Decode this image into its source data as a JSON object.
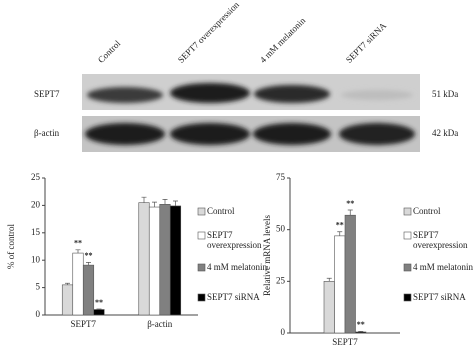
{
  "blot": {
    "columns": [
      "Control",
      "SEPT7 overexpression",
      "4 mM melatonin",
      "SEPT7 siRNA"
    ],
    "rows": [
      {
        "label": "SEPT7",
        "size": "51 kDa"
      },
      {
        "label": "β-actin",
        "size": "42 kDa"
      }
    ]
  },
  "chart_data": [
    {
      "type": "bar",
      "y_label": "% of control",
      "categories": [
        "SEPT7",
        "β-actin"
      ],
      "ylim": [
        0,
        25
      ],
      "yticks": [
        0,
        5,
        10,
        15,
        20,
        25
      ],
      "series": [
        {
          "name": "Control",
          "color": "#d9d9d9",
          "values": [
            5.5,
            20.5
          ],
          "errors": [
            0.3,
            1.0
          ]
        },
        {
          "name": "SEPT7 overexpression",
          "color": "#ffffff",
          "values": [
            11.3,
            19.7
          ],
          "errors": [
            0.6,
            0.9
          ],
          "significance": [
            "**",
            null
          ]
        },
        {
          "name": "4 mM melatonin",
          "color": "#808080",
          "values": [
            9.1,
            20.2
          ],
          "errors": [
            0.5,
            0.9
          ],
          "significance": [
            "**",
            null
          ]
        },
        {
          "name": "SEPT7 siRNA",
          "color": "#000000",
          "values": [
            1.0,
            19.9
          ],
          "errors": [
            0.1,
            0.9
          ],
          "significance": [
            "**",
            null
          ]
        }
      ]
    },
    {
      "type": "bar",
      "y_label": "Relative mRNA levels",
      "categories": [
        "SEPT7"
      ],
      "ylim": [
        0,
        75
      ],
      "yticks": [
        0,
        25,
        50,
        75
      ],
      "series": [
        {
          "name": "Control",
          "color": "#d9d9d9",
          "values": [
            25
          ],
          "errors": [
            1.5
          ]
        },
        {
          "name": "SEPT7 overexpression",
          "color": "#ffffff",
          "values": [
            47
          ],
          "errors": [
            2.0
          ],
          "significance": [
            "**"
          ]
        },
        {
          "name": "4 mM melatonin",
          "color": "#808080",
          "values": [
            57
          ],
          "errors": [
            2.5
          ],
          "significance": [
            "**"
          ]
        },
        {
          "name": "SEPT7 siRNA",
          "color": "#000000",
          "values": [
            0.5
          ],
          "errors": [
            0.3
          ],
          "significance": [
            "**"
          ]
        }
      ]
    }
  ]
}
